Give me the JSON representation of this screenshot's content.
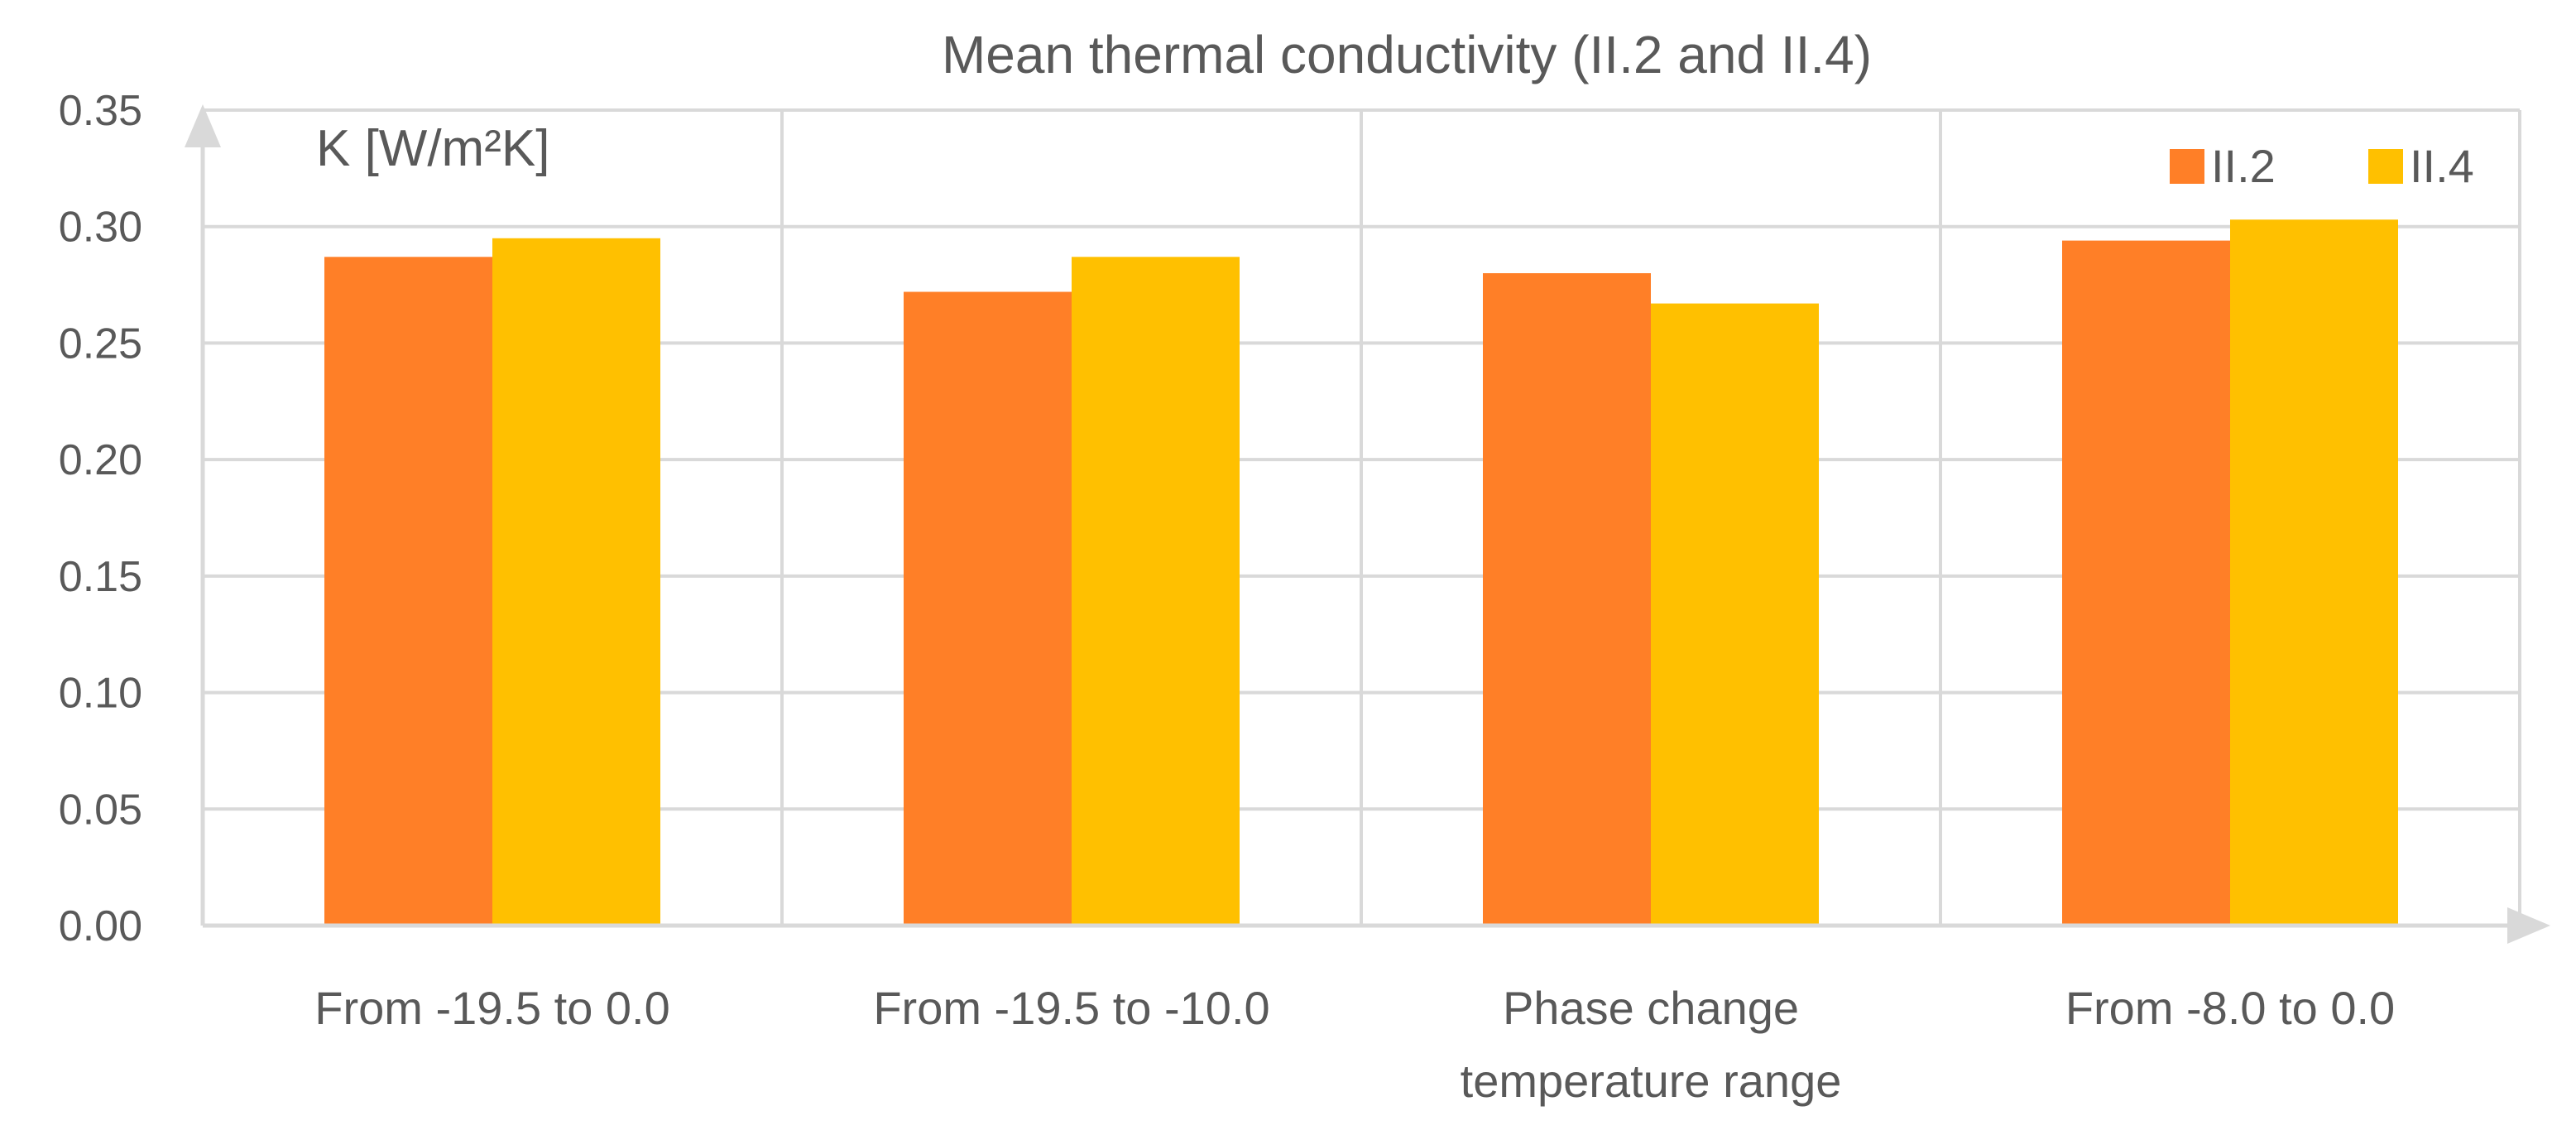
{
  "chart_data": {
    "type": "bar",
    "title": "Mean thermal conductivity (II.2 and II.4)",
    "ylabel_unit": "K [W/m²K]",
    "xlabel": "",
    "categories": [
      [
        "From -19.5 to 0.0"
      ],
      [
        "From -19.5 to -10.0"
      ],
      [
        "Phase change",
        "temperature range"
      ],
      [
        "From -8.0 to 0.0"
      ]
    ],
    "series": [
      {
        "name": "II.2",
        "color": "#FF7F27",
        "values": [
          0.287,
          0.272,
          0.28,
          0.294
        ]
      },
      {
        "name": "II.4",
        "color": "#FFC000",
        "values": [
          0.295,
          0.287,
          0.267,
          0.303
        ]
      }
    ],
    "ylim": [
      0,
      0.35
    ],
    "yticks": [
      "0.00",
      "0.05",
      "0.10",
      "0.15",
      "0.20",
      "0.25",
      "0.30",
      "0.35"
    ],
    "grid": true,
    "legend_position": "top-right"
  }
}
